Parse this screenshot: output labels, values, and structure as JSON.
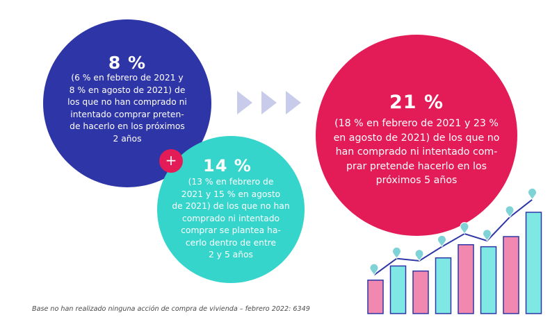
{
  "circle_blue": {
    "percent": "8 %",
    "text": "(6 % en febrero de 2021 y\n8 % en agosto de 2021) de\nlos que no han comprado ni\nintentado comprar preten-\nde hacerlo en los próximos\n2 años",
    "color": "#2e35a6"
  },
  "plus_symbol": "+",
  "circle_teal": {
    "percent": "14 %",
    "text": "(13 % en febrero de\n2021 y 15 % en agosto\nde 2021) de los que no han\ncomprado ni intentado\ncomprar se plantea ha-\ncerlo dentro de entre\n2 y 5 años",
    "color": "#35d5cc"
  },
  "circle_red": {
    "percent": "21 %",
    "text": "(18 % en febrero de 2021 y 23 %\nen agosto de 2021) de los que no\nhan comprado ni intentado com-\nprar pretende hacerlo en los\npróximos 5 años",
    "color": "#e31b56"
  },
  "footnote": "Base no han realizado ninguna acción de compra de vivienda – febrero 2022: 6349",
  "colors": {
    "arrow": "#c8ccea",
    "bar_pink": "#f088b0",
    "bar_teal": "#7fe8e4",
    "bar_outline": "#2e35a6",
    "line": "#2e35a6",
    "marker": "#7fd3d6"
  },
  "decorative_chart": {
    "bars": [
      0.33,
      0.47,
      0.42,
      0.55,
      0.68,
      0.66,
      0.76,
      1.0
    ],
    "line": [
      0.28,
      0.42,
      0.4,
      0.52,
      0.63,
      0.57,
      0.77,
      0.92
    ]
  }
}
